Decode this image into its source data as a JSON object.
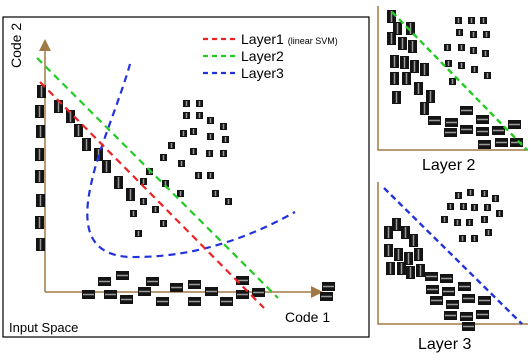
{
  "main_panel": {
    "axis_y_label": "Code 2",
    "axis_x_label": "Code 1",
    "space_label": "Input Space"
  },
  "legend": [
    {
      "label": "Layer1",
      "note": "(linear SVM)",
      "color": "#ee2222"
    },
    {
      "label": "Layer2",
      "note": "",
      "color": "#22cc22"
    },
    {
      "label": "Layer3",
      "note": "",
      "color": "#2233dd"
    }
  ],
  "side_panels": [
    {
      "caption": "Layer 2",
      "boundary_color": "#22cc22"
    },
    {
      "caption": "Layer 3",
      "boundary_color": "#2233dd"
    }
  ],
  "colors": {
    "axis": "#a07a45",
    "frame": "#000000",
    "patch": "#111111"
  }
}
